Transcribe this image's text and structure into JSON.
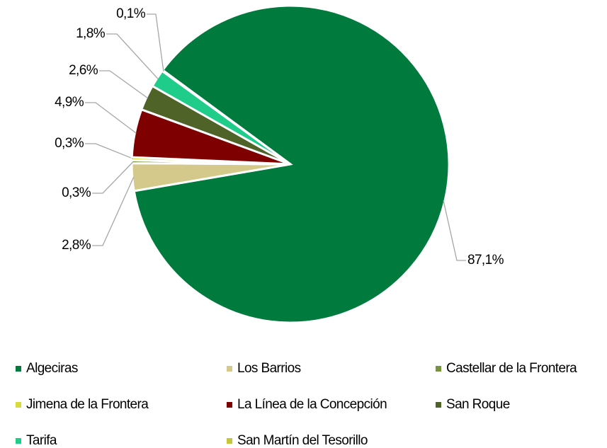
{
  "chart_data": {
    "type": "pie",
    "categories": [
      "Algeciras",
      "Los Barrios",
      "Castellar de la Frontera",
      "Jimena de la Frontera",
      "La Línea de la Concepción",
      "San Roque",
      "Tarifa",
      "San Martín del Tesorillo"
    ],
    "values": [
      87.1,
      2.8,
      0.3,
      0.3,
      4.9,
      2.6,
      1.8,
      0.1
    ],
    "value_labels": [
      "87,1%",
      "2,8%",
      "0,3%",
      "0,3%",
      "4,9%",
      "2,6%",
      "1,8%",
      "0,1%"
    ],
    "colors": [
      "#007a3d",
      "#d4c98b",
      "#77933c",
      "#d7dc3a",
      "#7f0000",
      "#4f6228",
      "#1fcc8a",
      "#c6c63c"
    ],
    "legend": "bottom"
  }
}
